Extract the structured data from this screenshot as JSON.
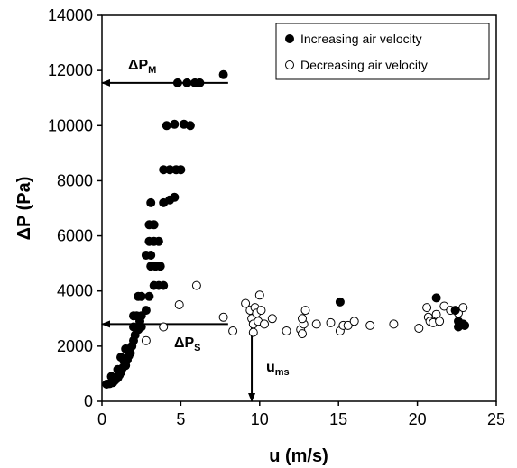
{
  "chart_data": {
    "type": "scatter",
    "xlabel": "u (m/s)",
    "ylabel": "ΔP (Pa)",
    "xlim": [
      0,
      25
    ],
    "ylim": [
      0,
      14000
    ],
    "xticks": [
      "0",
      "5",
      "10",
      "15",
      "20",
      "25"
    ],
    "yticks": [
      "0",
      "2000",
      "4000",
      "6000",
      "8000",
      "10000",
      "12000",
      "14000"
    ],
    "grid": false,
    "legend_position": "top-right",
    "series": [
      {
        "name": "Increasing air velocity",
        "marker": "filled-circle",
        "color": "#000000",
        "points": [
          [
            0.3,
            620
          ],
          [
            0.5,
            640
          ],
          [
            0.7,
            680
          ],
          [
            0.8,
            750
          ],
          [
            0.9,
            800
          ],
          [
            0.6,
            900
          ],
          [
            1.0,
            850
          ],
          [
            1.1,
            950
          ],
          [
            1.2,
            1050
          ],
          [
            1.0,
            1150
          ],
          [
            1.3,
            1200
          ],
          [
            1.5,
            1300
          ],
          [
            1.4,
            1450
          ],
          [
            1.6,
            1500
          ],
          [
            1.2,
            1600
          ],
          [
            1.7,
            1650
          ],
          [
            1.8,
            1750
          ],
          [
            1.5,
            1900
          ],
          [
            1.9,
            2000
          ],
          [
            2.0,
            2200
          ],
          [
            2.1,
            2400
          ],
          [
            2.3,
            2600
          ],
          [
            2.0,
            2700
          ],
          [
            2.5,
            2700
          ],
          [
            2.4,
            2900
          ],
          [
            2.0,
            3100
          ],
          [
            2.2,
            3100
          ],
          [
            2.5,
            3100
          ],
          [
            2.8,
            3300
          ],
          [
            2.3,
            3800
          ],
          [
            2.5,
            3800
          ],
          [
            3.0,
            3800
          ],
          [
            3.3,
            4200
          ],
          [
            3.6,
            4200
          ],
          [
            3.9,
            4200
          ],
          [
            3.1,
            4900
          ],
          [
            3.4,
            4900
          ],
          [
            3.7,
            4900
          ],
          [
            2.8,
            5300
          ],
          [
            3.1,
            5300
          ],
          [
            3.0,
            5800
          ],
          [
            3.3,
            5800
          ],
          [
            3.6,
            5800
          ],
          [
            3.0,
            6400
          ],
          [
            3.3,
            6400
          ],
          [
            3.1,
            7200
          ],
          [
            3.9,
            7200
          ],
          [
            4.3,
            7300
          ],
          [
            4.6,
            7400
          ],
          [
            3.9,
            8400
          ],
          [
            4.3,
            8400
          ],
          [
            4.7,
            8400
          ],
          [
            5.0,
            8400
          ],
          [
            4.1,
            10000
          ],
          [
            4.6,
            10050
          ],
          [
            5.2,
            10050
          ],
          [
            5.6,
            10000
          ],
          [
            4.8,
            11550
          ],
          [
            5.4,
            11550
          ],
          [
            5.9,
            11550
          ],
          [
            6.2,
            11550
          ],
          [
            7.7,
            11850
          ],
          [
            15.1,
            3600
          ],
          [
            21.2,
            3750
          ],
          [
            22.4,
            3300
          ],
          [
            22.6,
            2900
          ],
          [
            22.9,
            2800
          ],
          [
            22.6,
            2700
          ],
          [
            23.0,
            2750
          ]
        ]
      },
      {
        "name": "Decreasing air velocity",
        "marker": "open-circle",
        "color": "#000000",
        "points": [
          [
            2.8,
            2200
          ],
          [
            3.9,
            2700
          ],
          [
            4.9,
            3500
          ],
          [
            6.0,
            4200
          ],
          [
            7.7,
            3050
          ],
          [
            8.3,
            2550
          ],
          [
            9.1,
            3550
          ],
          [
            9.4,
            3300
          ],
          [
            9.5,
            3000
          ],
          [
            9.6,
            2800
          ],
          [
            9.6,
            2500
          ],
          [
            9.7,
            3400
          ],
          [
            9.8,
            3200
          ],
          [
            9.9,
            2900
          ],
          [
            10.0,
            3850
          ],
          [
            10.1,
            3300
          ],
          [
            10.3,
            2800
          ],
          [
            10.8,
            3000
          ],
          [
            11.7,
            2550
          ],
          [
            12.6,
            2600
          ],
          [
            12.7,
            2450
          ],
          [
            12.8,
            2800
          ],
          [
            12.7,
            3000
          ],
          [
            12.9,
            3300
          ],
          [
            13.6,
            2800
          ],
          [
            14.5,
            2850
          ],
          [
            15.1,
            2550
          ],
          [
            15.3,
            2750
          ],
          [
            15.6,
            2750
          ],
          [
            16.0,
            2900
          ],
          [
            17.0,
            2750
          ],
          [
            18.5,
            2800
          ],
          [
            20.1,
            2650
          ],
          [
            20.6,
            3400
          ],
          [
            20.7,
            3050
          ],
          [
            20.8,
            2900
          ],
          [
            21.0,
            2850
          ],
          [
            21.2,
            3150
          ],
          [
            21.4,
            2900
          ],
          [
            21.7,
            3450
          ],
          [
            22.1,
            3300
          ],
          [
            22.6,
            3200
          ],
          [
            22.9,
            3400
          ],
          [
            23.0,
            2750
          ],
          [
            22.8,
            2800
          ]
        ]
      }
    ],
    "annotations": {
      "dpm": {
        "main": "ΔP",
        "sub": "M",
        "line_y": 11550,
        "line_x_from": 8.0,
        "line_x_to": 0
      },
      "dps": {
        "main": "ΔP",
        "sub": "S",
        "line_y": 2800,
        "line_x_from": 8.0,
        "line_x_to": 0
      },
      "ums": {
        "main": "u",
        "sub": "ms",
        "line_x": 9.5,
        "line_y_from": 2800,
        "line_y_to": 0
      }
    }
  }
}
